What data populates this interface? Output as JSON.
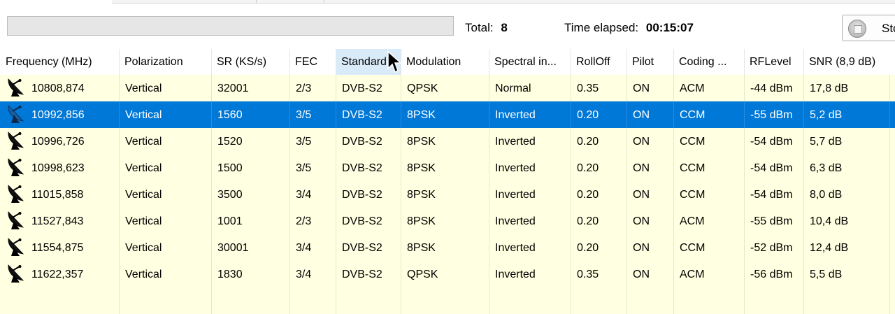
{
  "toolbar": {
    "total_label": "Total:",
    "total_value": "8",
    "elapsed_label": "Time elapsed:",
    "elapsed_value": "00:15:07",
    "stop_label": "Sto",
    "progress": 0
  },
  "table": {
    "columns": [
      "Frequency (MHz)",
      "Polarization",
      "SR (KS/s)",
      "FEC",
      "Standard",
      "Modulation",
      "Spectral in...",
      "RollOff",
      "Pilot",
      "Coding ...",
      "RFLevel",
      "SNR (8,9 dB)"
    ],
    "sorted_column": "Standard",
    "selected_row": 1,
    "rows": [
      [
        "10808,874",
        "Vertical",
        "32001",
        "2/3",
        "DVB-S2",
        "QPSK",
        "Normal",
        "0.35",
        "ON",
        "ACM",
        "-44 dBm",
        "17,8 dB"
      ],
      [
        "10992,856",
        "Vertical",
        "1560",
        "3/5",
        "DVB-S2",
        "8PSK",
        "Inverted",
        "0.20",
        "ON",
        "CCM",
        "-55 dBm",
        "5,2 dB"
      ],
      [
        "10996,726",
        "Vertical",
        "1520",
        "3/5",
        "DVB-S2",
        "8PSK",
        "Inverted",
        "0.20",
        "ON",
        "CCM",
        "-54 dBm",
        "5,7 dB"
      ],
      [
        "10998,623",
        "Vertical",
        "1500",
        "3/5",
        "DVB-S2",
        "8PSK",
        "Inverted",
        "0.20",
        "ON",
        "CCM",
        "-54 dBm",
        "6,3 dB"
      ],
      [
        "11015,858",
        "Vertical",
        "3500",
        "3/4",
        "DVB-S2",
        "8PSK",
        "Inverted",
        "0.20",
        "ON",
        "CCM",
        "-54 dBm",
        "8,0 dB"
      ],
      [
        "11527,843",
        "Vertical",
        "1001",
        "2/3",
        "DVB-S2",
        "8PSK",
        "Inverted",
        "0.20",
        "ON",
        "ACM",
        "-55 dBm",
        "10,4 dB"
      ],
      [
        "11554,875",
        "Vertical",
        "30001",
        "3/4",
        "DVB-S2",
        "8PSK",
        "Inverted",
        "0.20",
        "ON",
        "CCM",
        "-52 dBm",
        "12,4 dB"
      ],
      [
        "11622,357",
        "Vertical",
        "1830",
        "3/4",
        "DVB-S2",
        "QPSK",
        "Inverted",
        "0.35",
        "ON",
        "ACM",
        "-56 dBm",
        "5,5 dB"
      ]
    ]
  },
  "icons": {
    "row_icon": "satellite-dish-icon",
    "stop_icon": "stop-icon",
    "cursor": "mouse-pointer"
  },
  "colors": {
    "row_background": "#ffffe1",
    "selected_background": "#0078d7",
    "sorted_header": "#d9ebf9"
  }
}
